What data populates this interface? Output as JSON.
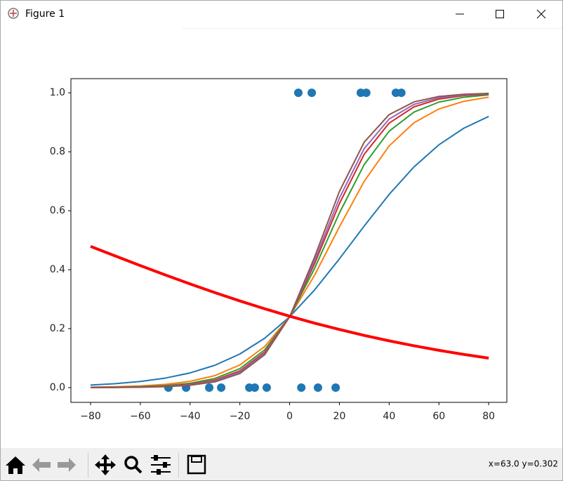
{
  "window": {
    "title": "Figure 1",
    "status": "x=63.0 y=0.302"
  },
  "chart_data": {
    "type": "line",
    "xlim": [
      -87.9,
      87.3
    ],
    "ylim": [
      -0.05,
      1.048
    ],
    "xticks": [
      {
        "value": -80,
        "label": "−80"
      },
      {
        "value": -60,
        "label": "−60"
      },
      {
        "value": -40,
        "label": "−40"
      },
      {
        "value": -20,
        "label": "−20"
      },
      0,
      20,
      40,
      60,
      80
    ],
    "yticks": [
      {
        "value": 0,
        "label": "0.0"
      },
      0.2,
      0.4,
      0.6,
      0.8,
      {
        "value": 1,
        "label": "1.0"
      }
    ],
    "x": [
      -80,
      -70,
      -60,
      -50,
      -40,
      -30,
      -20,
      -10,
      0,
      10,
      20,
      30,
      40,
      50,
      60,
      70,
      80
    ],
    "series": [
      {
        "type": "scatter",
        "color": "#1f77b4",
        "x": [
          3.5,
          8.9,
          28.6,
          30.8,
          42.7,
          44.9,
          -48.7,
          -41.6,
          -32.3,
          -27.5,
          -16.2,
          -14.0,
          -9.2,
          4.7,
          11.4,
          18.5
        ],
        "values": [
          1,
          1,
          1,
          1,
          1,
          1,
          0,
          0,
          0,
          0,
          0,
          0,
          0,
          0,
          0,
          0
        ]
      },
      {
        "type": "line",
        "color": "#1f77b4",
        "linewidth": 2,
        "values": [
          0.0086,
          0.0134,
          0.0209,
          0.0323,
          0.0498,
          0.0759,
          0.114,
          0.1676,
          0.24,
          0.331,
          0.4366,
          0.5483,
          0.6554,
          0.7488,
          0.8236,
          0.8798,
          0.9198
        ]
      },
      {
        "type": "line",
        "color": "#ff7f0e",
        "linewidth": 2,
        "values": [
          0.0015,
          0.003,
          0.0057,
          0.0111,
          0.0214,
          0.0409,
          0.0768,
          0.1395,
          0.24,
          0.3808,
          0.5451,
          0.7002,
          0.8198,
          0.8986,
          0.9452,
          0.9711,
          0.985
        ]
      },
      {
        "type": "line",
        "color": "#2ca02c",
        "linewidth": 2,
        "values": [
          0.0007,
          0.0015,
          0.0032,
          0.0069,
          0.0147,
          0.031,
          0.0642,
          0.1283,
          0.24,
          0.4037,
          0.5922,
          0.7569,
          0.8698,
          0.9348,
          0.9685,
          0.985,
          0.993
        ]
      },
      {
        "type": "line",
        "color": "#d62728",
        "linewidth": 2,
        "values": [
          0.0004,
          0.0009,
          0.0022,
          0.005,
          0.0113,
          0.0255,
          0.0566,
          0.121,
          0.24,
          0.4199,
          0.6241,
          0.792,
          0.8972,
          0.9524,
          0.9787,
          0.9906,
          0.9959
        ]
      },
      {
        "type": "line",
        "color": "#9467bd",
        "linewidth": 2,
        "values": [
          0.0003,
          0.0007,
          0.0017,
          0.0041,
          0.0096,
          0.0227,
          0.0525,
          0.1168,
          0.24,
          0.4297,
          0.6427,
          0.8111,
          0.9111,
          0.9607,
          0.9832,
          0.9929,
          0.997
        ]
      },
      {
        "type": "line",
        "color": "#8c564b",
        "linewidth": 2,
        "values": [
          0.0002,
          0.0005,
          0.0013,
          0.0032,
          0.0079,
          0.0196,
          0.0477,
          0.1117,
          0.24,
          0.442,
          0.6653,
          0.833,
          0.926,
          0.9692,
          0.9875,
          0.995,
          0.998
        ]
      },
      {
        "type": "line",
        "color": "#ff0000",
        "linewidth": 4,
        "values": [
          0.479,
          0.4462,
          0.4139,
          0.3823,
          0.3516,
          0.3221,
          0.294,
          0.2674,
          0.2423,
          0.2188,
          0.1972,
          0.1771,
          0.1587,
          0.1419,
          0.1265,
          0.1126,
          0.1001
        ]
      }
    ]
  }
}
